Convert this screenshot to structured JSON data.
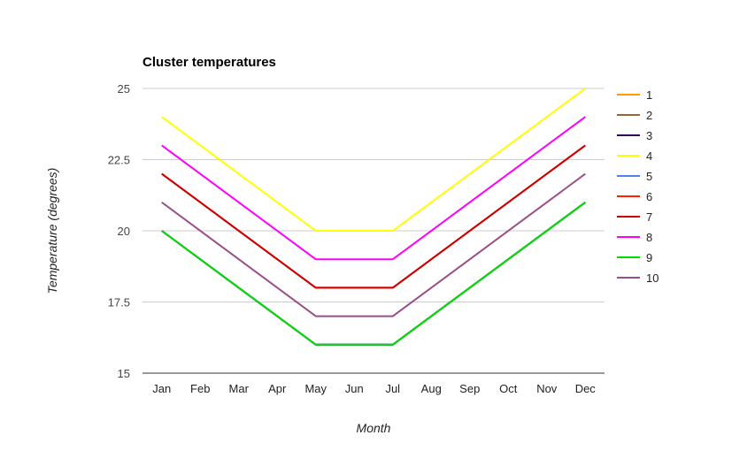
{
  "chart_data": {
    "type": "line",
    "title": "Cluster temperatures",
    "xlabel": "Month",
    "ylabel": "Temperature (degrees)",
    "categories": [
      "Jan",
      "Feb",
      "Mar",
      "Apr",
      "May",
      "Jun",
      "Jul",
      "Aug",
      "Sep",
      "Oct",
      "Nov",
      "Dec"
    ],
    "ylim": [
      15,
      25
    ],
    "yticks": [
      15,
      17.5,
      20,
      22.5,
      25
    ],
    "ytick_labels": [
      "15",
      "17.5",
      "20",
      "22.5",
      "25"
    ],
    "grid": true,
    "legend_position": "right",
    "series": [
      {
        "name": "1",
        "color": "#ff9900",
        "values": [
          20,
          null,
          null,
          null,
          16,
          null,
          16,
          null,
          null,
          null,
          null,
          21
        ]
      },
      {
        "name": "2",
        "color": "#996633",
        "values": [
          20,
          null,
          null,
          null,
          16,
          null,
          16,
          null,
          null,
          null,
          null,
          21
        ]
      },
      {
        "name": "3",
        "color": "#330066",
        "values": [
          20,
          null,
          null,
          null,
          16,
          null,
          16,
          null,
          null,
          null,
          null,
          21
        ]
      },
      {
        "name": "4",
        "color": "#ffff00",
        "values": [
          24,
          null,
          null,
          null,
          20,
          null,
          20,
          null,
          null,
          null,
          null,
          25
        ]
      },
      {
        "name": "5",
        "color": "#4a86e8",
        "values": [
          20,
          null,
          null,
          null,
          16,
          null,
          16,
          null,
          null,
          null,
          null,
          21
        ]
      },
      {
        "name": "6",
        "color": "#ff2200",
        "values": [
          22,
          null,
          null,
          null,
          18,
          null,
          18,
          null,
          null,
          null,
          null,
          23
        ]
      },
      {
        "name": "7",
        "color": "#cc0000",
        "values": [
          22,
          null,
          null,
          null,
          18,
          null,
          18,
          null,
          null,
          null,
          null,
          23
        ]
      },
      {
        "name": "8",
        "color": "#ff00ff",
        "values": [
          23,
          null,
          null,
          null,
          19,
          null,
          19,
          null,
          null,
          null,
          null,
          24
        ]
      },
      {
        "name": "9",
        "color": "#00dd00",
        "values": [
          20,
          null,
          null,
          null,
          16,
          null,
          16,
          null,
          null,
          null,
          null,
          21
        ]
      },
      {
        "name": "10",
        "color": "#994f88",
        "values": [
          21,
          null,
          null,
          null,
          17,
          null,
          17,
          null,
          null,
          null,
          null,
          22
        ]
      }
    ]
  }
}
